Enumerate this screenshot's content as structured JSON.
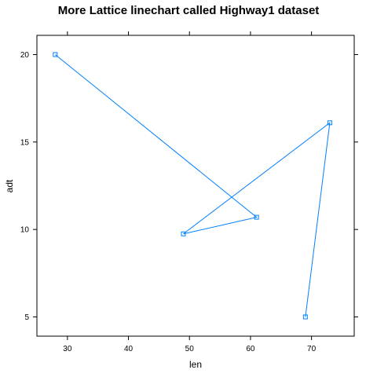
{
  "chart_data": {
    "type": "line",
    "title": "More Lattice linechart called Highway1 dataset",
    "xlabel": "len",
    "ylabel": "adt",
    "xlim": [
      25,
      77
    ],
    "ylim": [
      3.9,
      21.1
    ],
    "x_ticks": [
      30,
      40,
      50,
      60,
      70
    ],
    "y_ticks": [
      5,
      10,
      15,
      20
    ],
    "grid": false,
    "series": [
      {
        "color": "#0080ff",
        "marker": "square",
        "points": [
          {
            "x": 28,
            "y": 20
          },
          {
            "x": 61,
            "y": 10.7
          },
          {
            "x": 49,
            "y": 9.75
          },
          {
            "x": 73,
            "y": 16.1
          },
          {
            "x": 69,
            "y": 5
          }
        ]
      }
    ]
  }
}
